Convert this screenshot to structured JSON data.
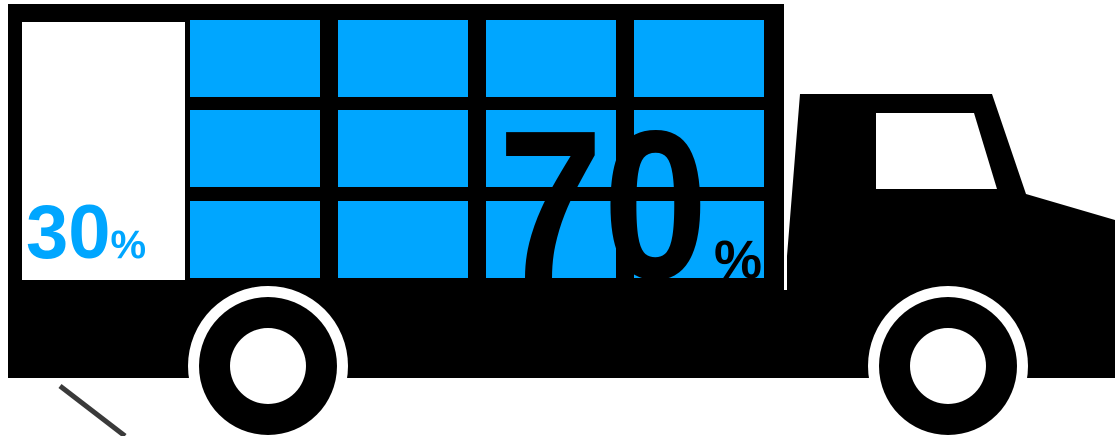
{
  "diagram": {
    "empty_share": {
      "value": "30",
      "unit": "%"
    },
    "loaded_share": {
      "value": "70",
      "unit": "%"
    },
    "colors": {
      "loaded_cells": "#00a6ff",
      "empty_area": "#ffffff",
      "empty_label": "#00a6ff",
      "loaded_label": "#000000",
      "truck_body": "#000000",
      "ground_line": "#3a3a3a"
    },
    "icons": [
      "truck-icon",
      "wheel-icon"
    ]
  }
}
